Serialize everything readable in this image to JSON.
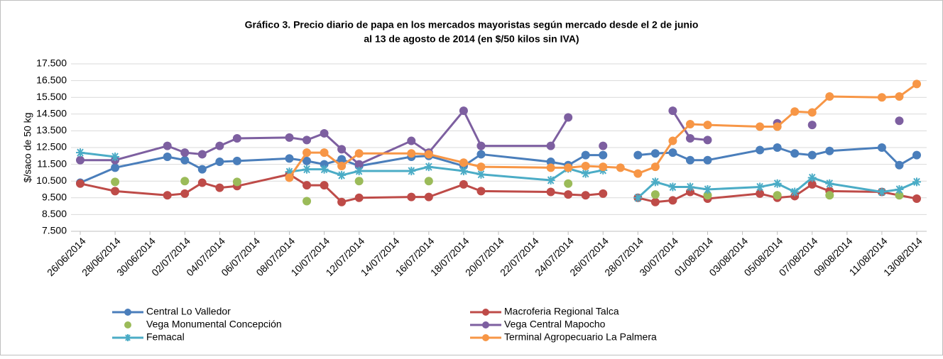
{
  "chart_data": {
    "type": "line",
    "title": [
      "Gráfico 3. Precio diario de papa en los mercados mayoristas según mercado desde el 2 de junio",
      "al 13 de agosto de 2014 (en $/50 kilos sin IVA)"
    ],
    "ylabel": "$/saco de 50 kg",
    "xlim": [
      "26/06/2014",
      "13/08/2014"
    ],
    "xticks": [
      "26/06/2014",
      "28/06/2014",
      "30/06/2014",
      "02/07/2014",
      "04/07/2014",
      "06/07/2014",
      "08/07/2014",
      "10/07/2014",
      "12/07/2014",
      "14/07/2014",
      "16/07/2014",
      "18/07/2014",
      "20/07/2014",
      "22/07/2014",
      "24/07/2014",
      "26/07/2014",
      "28/07/2014",
      "30/07/2014",
      "01/08/2014",
      "03/08/2014",
      "05/08/2014",
      "07/08/2014",
      "09/08/2014",
      "11/08/2014",
      "13/08/2014"
    ],
    "ylim": [
      7500,
      17500
    ],
    "yticks": [
      {
        "value": 7500,
        "label": "7.500"
      },
      {
        "value": 8500,
        "label": "8.500"
      },
      {
        "value": 9500,
        "label": "9.500"
      },
      {
        "value": 10500,
        "label": "10.500"
      },
      {
        "value": 11500,
        "label": "11.500"
      },
      {
        "value": 12500,
        "label": "12.500"
      },
      {
        "value": 13500,
        "label": "13.500"
      },
      {
        "value": 14500,
        "label": "14.500"
      },
      {
        "value": 15500,
        "label": "15.500"
      },
      {
        "value": 16500,
        "label": "16.500"
      },
      {
        "value": 17500,
        "label": "17.500"
      }
    ],
    "grid": true,
    "legend": "bottom",
    "series": [
      {
        "name": "Central Lo Valledor",
        "color": "#4a7ebb",
        "marker": "circle",
        "line": true,
        "x": [
          "26/06/2014",
          "28/06/2014",
          "01/07/2014",
          "02/07/2014",
          "03/07/2014",
          "04/07/2014",
          "05/07/2014",
          "08/07/2014",
          "09/07/2014",
          "10/07/2014",
          "11/07/2014",
          "12/07/2014",
          "15/07/2014",
          "16/07/2014",
          "18/07/2014",
          "19/07/2014",
          "23/07/2014",
          "24/07/2014",
          "25/07/2014",
          "26/07/2014",
          "27/07/2014",
          "28/07/2014",
          "29/07/2014",
          "30/07/2014",
          "31/07/2014",
          "01/08/2014",
          "04/08/2014",
          "05/08/2014",
          "06/08/2014",
          "07/08/2014",
          "08/08/2014",
          "11/08/2014",
          "12/08/2014",
          "13/08/2014"
        ],
        "values": [
          10400,
          11300,
          11950,
          11750,
          11200,
          11650,
          11700,
          11850,
          11700,
          11500,
          11800,
          11400,
          11950,
          12000,
          11400,
          12100,
          11650,
          11450,
          12050,
          12050,
          null,
          12050,
          12150,
          12200,
          11750,
          11750,
          12350,
          12500,
          12150,
          12050,
          12300,
          12500,
          11450,
          12050
        ]
      },
      {
        "name": "Macroferia Regional Talca",
        "color": "#be4b48",
        "marker": "circle",
        "line": true,
        "x": [
          "26/06/2014",
          "28/06/2014",
          "01/07/2014",
          "02/07/2014",
          "03/07/2014",
          "04/07/2014",
          "05/07/2014",
          "08/07/2014",
          "09/07/2014",
          "10/07/2014",
          "11/07/2014",
          "12/07/2014",
          "15/07/2014",
          "16/07/2014",
          "18/07/2014",
          "19/07/2014",
          "23/07/2014",
          "24/07/2014",
          "25/07/2014",
          "26/07/2014",
          "27/07/2014",
          "28/07/2014",
          "29/07/2014",
          "30/07/2014",
          "31/07/2014",
          "01/08/2014",
          "04/08/2014",
          "05/08/2014",
          "06/08/2014",
          "07/08/2014",
          "08/08/2014",
          "11/08/2014",
          "13/08/2014"
        ],
        "values": [
          10350,
          9900,
          9650,
          9750,
          10400,
          10100,
          10200,
          10900,
          10250,
          10250,
          9250,
          9500,
          9550,
          9550,
          10300,
          9900,
          9850,
          9700,
          9650,
          9750,
          null,
          9500,
          9250,
          9350,
          9850,
          9450,
          9750,
          9500,
          9600,
          10300,
          9900,
          9850,
          9450
        ]
      },
      {
        "name": "Vega Monumental Concepción",
        "color": "#9bbb59",
        "marker": "circle",
        "line": false,
        "x": [
          "28/06/2014",
          "02/07/2014",
          "05/07/2014",
          "09/07/2014",
          "12/07/2014",
          "16/07/2014",
          "24/07/2014",
          "29/07/2014",
          "01/08/2014",
          "05/08/2014",
          "08/08/2014",
          "12/08/2014"
        ],
        "values": [
          10450,
          10500,
          10450,
          9300,
          10500,
          10500,
          10350,
          9700,
          9650,
          9650,
          9650,
          9650
        ]
      },
      {
        "name": "Vega Central Mapocho",
        "color": "#7d5fa0",
        "marker": "circle",
        "line": true,
        "x": [
          "26/06/2014",
          "28/06/2014",
          "01/07/2014",
          "02/07/2014",
          "03/07/2014",
          "04/07/2014",
          "05/07/2014",
          "08/07/2014",
          "09/07/2014",
          "10/07/2014",
          "11/07/2014",
          "12/07/2014",
          "15/07/2014",
          "16/07/2014",
          "18/07/2014",
          "19/07/2014",
          "23/07/2014",
          "24/07/2014",
          "25/07/2014",
          "26/07/2014",
          "27/07/2014",
          "30/07/2014",
          "31/07/2014",
          "01/08/2014",
          "02/08/2014",
          "05/08/2014",
          "06/08/2014",
          "07/08/2014",
          "09/08/2014",
          "12/08/2014"
        ],
        "values": [
          11750,
          11750,
          12600,
          12200,
          12100,
          12600,
          13050,
          13100,
          12950,
          13350,
          12400,
          11500,
          12900,
          12200,
          14700,
          12600,
          12600,
          14300,
          null,
          12600,
          null,
          14700,
          13050,
          12950,
          null,
          13950,
          null,
          13850,
          null,
          14100
        ]
      },
      {
        "name": "Femacal",
        "color": "#4bacc6",
        "marker": "asterisk",
        "line": true,
        "x": [
          "26/06/2014",
          "28/06/2014",
          "29/06/2014",
          "08/07/2014",
          "09/07/2014",
          "10/07/2014",
          "11/07/2014",
          "12/07/2014",
          "15/07/2014",
          "16/07/2014",
          "18/07/2014",
          "19/07/2014",
          "23/07/2014",
          "24/07/2014",
          "25/07/2014",
          "26/07/2014",
          "27/07/2014",
          "28/07/2014",
          "29/07/2014",
          "30/07/2014",
          "31/07/2014",
          "01/08/2014",
          "04/08/2014",
          "05/08/2014",
          "06/08/2014",
          "07/08/2014",
          "08/08/2014",
          "11/08/2014",
          "12/08/2014",
          "13/08/2014"
        ],
        "values": [
          12200,
          11950,
          null,
          11050,
          11200,
          11200,
          10850,
          11100,
          11100,
          11350,
          11100,
          10900,
          10550,
          11250,
          10950,
          11150,
          null,
          9500,
          10450,
          10150,
          10150,
          10000,
          10150,
          10350,
          9850,
          10700,
          10350,
          9850,
          10000,
          10450
        ]
      },
      {
        "name": "Terminal Agropecuario La Palmera",
        "color": "#f79646",
        "marker": "circle",
        "line": true,
        "x": [
          "08/07/2014",
          "09/07/2014",
          "10/07/2014",
          "11/07/2014",
          "12/07/2014",
          "15/07/2014",
          "16/07/2014",
          "18/07/2014",
          "19/07/2014",
          "23/07/2014",
          "24/07/2014",
          "25/07/2014",
          "26/07/2014",
          "27/07/2014",
          "28/07/2014",
          "29/07/2014",
          "30/07/2014",
          "31/07/2014",
          "01/08/2014",
          "04/08/2014",
          "05/08/2014",
          "06/08/2014",
          "07/08/2014",
          "08/08/2014",
          "11/08/2014",
          "12/08/2014",
          "13/08/2014"
        ],
        "values": [
          10700,
          12200,
          12200,
          11400,
          12150,
          12150,
          12100,
          11600,
          11350,
          11300,
          11300,
          11400,
          11350,
          11300,
          10950,
          11350,
          12900,
          13900,
          13850,
          13750,
          13750,
          14650,
          14600,
          15550,
          15500,
          15550,
          16300
        ]
      }
    ]
  }
}
